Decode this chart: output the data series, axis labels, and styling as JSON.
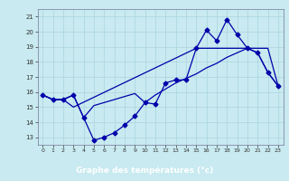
{
  "xlabel": "Graphe des températures (°c)",
  "bg_color": "#c8eaf0",
  "line_color": "#0000aa",
  "grid_color": "#aad4e0",
  "axis_bg": "#2255aa",
  "xlim": [
    -0.5,
    23.5
  ],
  "ylim": [
    12.5,
    21.5
  ],
  "yticks": [
    13,
    14,
    15,
    16,
    17,
    18,
    19,
    20,
    21
  ],
  "xticks": [
    0,
    1,
    2,
    3,
    4,
    5,
    6,
    7,
    8,
    9,
    10,
    11,
    12,
    13,
    14,
    15,
    16,
    17,
    18,
    19,
    20,
    21,
    22,
    23
  ],
  "series1_x": [
    0,
    1,
    2,
    3,
    4,
    5,
    6,
    7,
    8,
    9,
    10,
    11,
    12,
    13,
    14,
    15,
    16,
    17,
    18,
    19,
    20,
    21,
    22,
    23
  ],
  "series1_y": [
    15.8,
    15.5,
    15.5,
    15.8,
    14.3,
    12.8,
    13.0,
    13.3,
    13.8,
    14.4,
    15.3,
    15.2,
    16.6,
    16.8,
    16.8,
    18.9,
    20.1,
    19.4,
    20.8,
    19.8,
    18.9,
    18.6,
    17.3,
    16.4
  ],
  "series2_x": [
    0,
    1,
    2,
    3,
    4,
    5,
    6,
    7,
    8,
    9,
    10,
    11,
    12,
    13,
    14,
    15,
    16,
    17,
    18,
    19,
    20,
    21,
    22,
    23
  ],
  "series2_y": [
    15.8,
    15.5,
    15.5,
    15.8,
    14.3,
    15.1,
    15.3,
    15.5,
    15.7,
    15.9,
    15.3,
    15.8,
    16.2,
    16.6,
    16.9,
    17.2,
    17.6,
    17.9,
    18.3,
    18.6,
    18.9,
    18.9,
    18.9,
    16.4
  ],
  "series3_x": [
    0,
    1,
    2,
    3,
    15,
    20,
    21,
    22,
    23
  ],
  "series3_y": [
    15.8,
    15.5,
    15.5,
    15.0,
    18.9,
    18.9,
    18.6,
    17.3,
    16.4
  ]
}
